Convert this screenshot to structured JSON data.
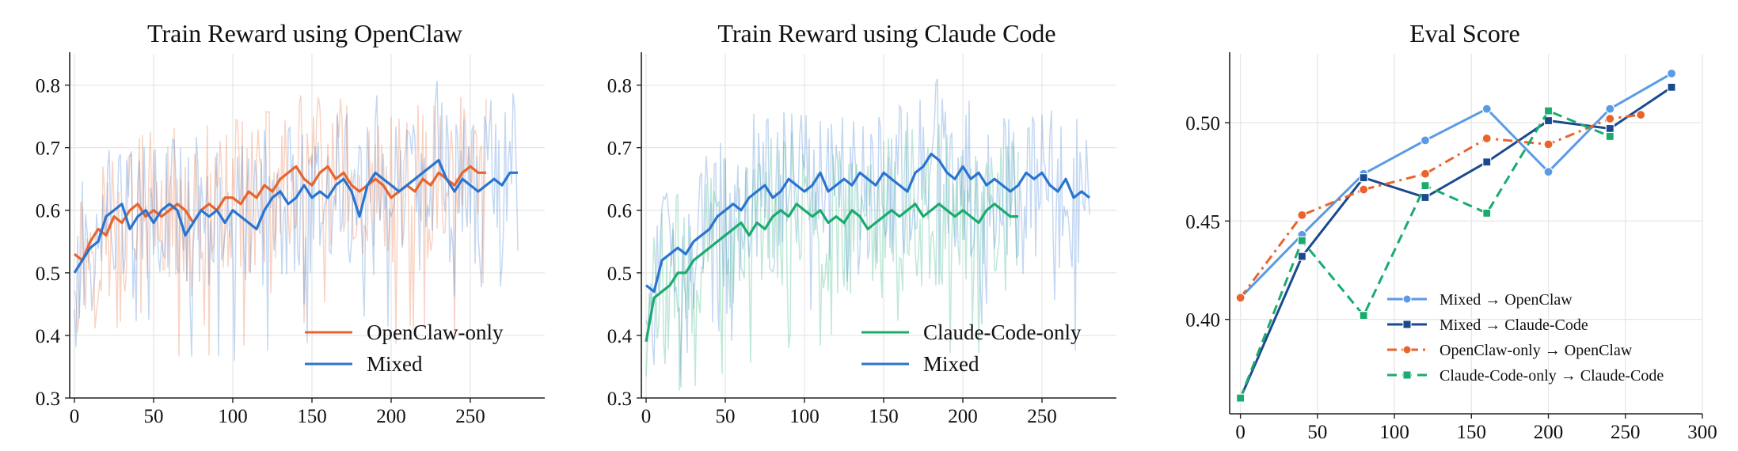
{
  "chart_data": [
    {
      "type": "line",
      "title": "Train Reward using OpenClaw",
      "xlabel": "",
      "ylabel": "",
      "xlim": [
        -3,
        297
      ],
      "ylim": [
        0.3,
        0.85
      ],
      "xticks": [
        "0",
        "50",
        "100",
        "150",
        "200",
        "250"
      ],
      "xtick_values": [
        0,
        50,
        100,
        150,
        200,
        250
      ],
      "yticks": [
        "0.3",
        "0.4",
        "0.5",
        "0.6",
        "0.7",
        "0.8"
      ],
      "ytick_values": [
        0.3,
        0.4,
        0.5,
        0.6,
        0.7,
        0.8
      ],
      "grid": true,
      "legend_position": "lower-right",
      "series": [
        {
          "name": "OpenClaw-only",
          "color": "#e8642c",
          "x": [
            0,
            5,
            10,
            15,
            20,
            25,
            30,
            35,
            40,
            45,
            50,
            55,
            60,
            65,
            70,
            75,
            80,
            85,
            90,
            95,
            100,
            105,
            110,
            115,
            120,
            125,
            130,
            135,
            140,
            145,
            150,
            155,
            160,
            165,
            170,
            175,
            180,
            185,
            190,
            195,
            200,
            205,
            210,
            215,
            220,
            225,
            230,
            235,
            240,
            245,
            250,
            255,
            260
          ],
          "values": [
            0.53,
            0.52,
            0.55,
            0.57,
            0.56,
            0.59,
            0.58,
            0.6,
            0.61,
            0.59,
            0.6,
            0.59,
            0.6,
            0.61,
            0.6,
            0.58,
            0.6,
            0.61,
            0.6,
            0.62,
            0.62,
            0.61,
            0.63,
            0.62,
            0.64,
            0.63,
            0.65,
            0.66,
            0.67,
            0.65,
            0.64,
            0.66,
            0.67,
            0.65,
            0.66,
            0.64,
            0.63,
            0.64,
            0.65,
            0.64,
            0.62,
            0.63,
            0.64,
            0.63,
            0.65,
            0.64,
            0.66,
            0.65,
            0.64,
            0.66,
            0.67,
            0.66,
            0.66
          ]
        },
        {
          "name": "Mixed",
          "color": "#2a74d0",
          "x": [
            0,
            5,
            10,
            15,
            20,
            25,
            30,
            35,
            40,
            45,
            50,
            55,
            60,
            65,
            70,
            75,
            80,
            85,
            90,
            95,
            100,
            105,
            110,
            115,
            120,
            125,
            130,
            135,
            140,
            145,
            150,
            155,
            160,
            165,
            170,
            175,
            180,
            185,
            190,
            195,
            200,
            205,
            210,
            215,
            220,
            225,
            230,
            235,
            240,
            245,
            250,
            255,
            260,
            265,
            270,
            275,
            280
          ],
          "values": [
            0.5,
            0.52,
            0.54,
            0.55,
            0.59,
            0.6,
            0.61,
            0.57,
            0.59,
            0.6,
            0.58,
            0.6,
            0.61,
            0.6,
            0.56,
            0.58,
            0.6,
            0.59,
            0.6,
            0.58,
            0.6,
            0.59,
            0.58,
            0.57,
            0.6,
            0.62,
            0.63,
            0.61,
            0.62,
            0.64,
            0.62,
            0.63,
            0.62,
            0.64,
            0.65,
            0.63,
            0.59,
            0.64,
            0.66,
            0.65,
            0.64,
            0.63,
            0.64,
            0.65,
            0.66,
            0.67,
            0.68,
            0.65,
            0.63,
            0.65,
            0.64,
            0.63,
            0.64,
            0.65,
            0.64,
            0.66,
            0.66
          ]
        }
      ]
    },
    {
      "type": "line",
      "title": "Train Reward using Claude Code",
      "xlabel": "",
      "ylabel": "",
      "xlim": [
        -3,
        297
      ],
      "ylim": [
        0.3,
        0.85
      ],
      "xticks": [
        "0",
        "50",
        "100",
        "150",
        "200",
        "250"
      ],
      "xtick_values": [
        0,
        50,
        100,
        150,
        200,
        250
      ],
      "yticks": [
        "0.3",
        "0.4",
        "0.5",
        "0.6",
        "0.7",
        "0.8"
      ],
      "ytick_values": [
        0.3,
        0.4,
        0.5,
        0.6,
        0.7,
        0.8
      ],
      "grid": true,
      "legend_position": "lower-right",
      "series": [
        {
          "name": "Claude-Code-only",
          "color": "#1aab6e",
          "x": [
            0,
            5,
            10,
            15,
            20,
            25,
            30,
            35,
            40,
            45,
            50,
            55,
            60,
            65,
            70,
            75,
            80,
            85,
            90,
            95,
            100,
            105,
            110,
            115,
            120,
            125,
            130,
            135,
            140,
            145,
            150,
            155,
            160,
            165,
            170,
            175,
            180,
            185,
            190,
            195,
            200,
            205,
            210,
            215,
            220,
            225,
            230,
            235
          ],
          "values": [
            0.39,
            0.46,
            0.47,
            0.48,
            0.5,
            0.5,
            0.52,
            0.53,
            0.54,
            0.55,
            0.56,
            0.57,
            0.58,
            0.56,
            0.58,
            0.57,
            0.59,
            0.6,
            0.59,
            0.61,
            0.6,
            0.59,
            0.6,
            0.58,
            0.59,
            0.58,
            0.6,
            0.59,
            0.57,
            0.58,
            0.59,
            0.6,
            0.59,
            0.6,
            0.61,
            0.59,
            0.6,
            0.61,
            0.6,
            0.59,
            0.6,
            0.59,
            0.58,
            0.6,
            0.61,
            0.6,
            0.59,
            0.59
          ]
        },
        {
          "name": "Mixed",
          "color": "#2a74d0",
          "x": [
            0,
            5,
            10,
            15,
            20,
            25,
            30,
            35,
            40,
            45,
            50,
            55,
            60,
            65,
            70,
            75,
            80,
            85,
            90,
            95,
            100,
            105,
            110,
            115,
            120,
            125,
            130,
            135,
            140,
            145,
            150,
            155,
            160,
            165,
            170,
            175,
            180,
            185,
            190,
            195,
            200,
            205,
            210,
            215,
            220,
            225,
            230,
            235,
            240,
            245,
            250,
            255,
            260,
            265,
            270,
            275,
            280
          ],
          "values": [
            0.48,
            0.47,
            0.52,
            0.53,
            0.54,
            0.53,
            0.55,
            0.56,
            0.57,
            0.59,
            0.6,
            0.61,
            0.6,
            0.62,
            0.63,
            0.64,
            0.62,
            0.63,
            0.65,
            0.64,
            0.63,
            0.64,
            0.66,
            0.63,
            0.64,
            0.65,
            0.64,
            0.66,
            0.65,
            0.64,
            0.66,
            0.65,
            0.64,
            0.63,
            0.66,
            0.67,
            0.69,
            0.68,
            0.66,
            0.65,
            0.67,
            0.65,
            0.66,
            0.64,
            0.65,
            0.64,
            0.63,
            0.64,
            0.66,
            0.65,
            0.66,
            0.64,
            0.63,
            0.65,
            0.62,
            0.63,
            0.62
          ]
        }
      ]
    },
    {
      "type": "line",
      "title": "Eval Score",
      "xlabel": "",
      "ylabel": "",
      "xlim": [
        -7,
        300
      ],
      "ylim": [
        0.352,
        0.535
      ],
      "xticks": [
        "0",
        "50",
        "100",
        "150",
        "200",
        "250",
        "300"
      ],
      "xtick_values": [
        0,
        50,
        100,
        150,
        200,
        250,
        300
      ],
      "yticks": [
        "0.40",
        "0.45",
        "0.50"
      ],
      "ytick_values": [
        0.4,
        0.45,
        0.5
      ],
      "grid": true,
      "legend_position": "lower-right",
      "series": [
        {
          "name": "Mixed → OpenClaw",
          "color": "#5a9be6",
          "style": "solid",
          "marker": "circle",
          "x": [
            0,
            40,
            80,
            120,
            160,
            200,
            240,
            280
          ],
          "values": [
            0.411,
            0.443,
            0.474,
            0.491,
            0.507,
            0.475,
            0.507,
            0.525
          ]
        },
        {
          "name": "Mixed → Claude-Code",
          "color": "#1a4a8e",
          "style": "solid",
          "marker": "square",
          "x": [
            0,
            40,
            80,
            120,
            160,
            200,
            240,
            280
          ],
          "values": [
            0.36,
            0.432,
            0.472,
            0.462,
            0.48,
            0.501,
            0.497,
            0.518
          ]
        },
        {
          "name": "OpenClaw-only → OpenClaw",
          "color": "#e8642c",
          "style": "dashdot",
          "marker": "circle",
          "x": [
            0,
            40,
            80,
            120,
            160,
            200,
            240,
            260
          ],
          "values": [
            0.411,
            0.453,
            0.466,
            0.474,
            0.492,
            0.489,
            0.502,
            0.504
          ]
        },
        {
          "name": "Claude-Code-only → Claude-Code",
          "color": "#1aab6e",
          "style": "dashed",
          "marker": "square",
          "x": [
            0,
            40,
            80,
            120,
            160,
            200,
            240
          ],
          "values": [
            0.36,
            0.44,
            0.402,
            0.468,
            0.454,
            0.506,
            0.493
          ]
        }
      ]
    }
  ]
}
